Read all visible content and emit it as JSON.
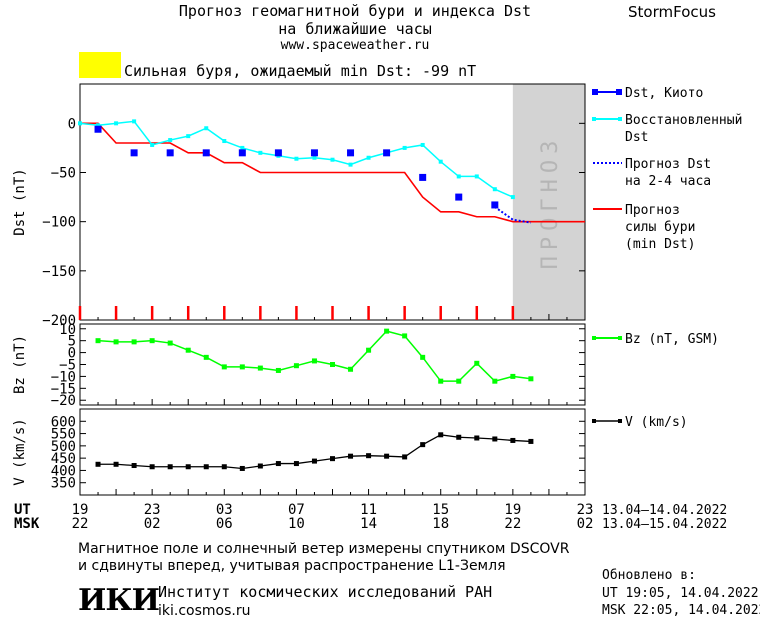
{
  "header": {
    "title_line1": "Прогноз геомагнитной бури и индекса Dst",
    "title_line2": "на ближайшие часы",
    "url": "www.spaceweather.ru",
    "brand": "StormFocus"
  },
  "storm": {
    "text": "Сильная буря, ожидаемый min Dst: -99 nT",
    "color": "#ffff00"
  },
  "colors": {
    "dst_kyoto": "#0000ff",
    "dst_restored": "#00ffff",
    "dst_forecast": "#0000ff",
    "storm_forecast": "#ff0000",
    "bz": "#00ff00",
    "v": "#000000",
    "forecast_band": "#d3d3d3"
  },
  "chart_data": [
    {
      "type": "line",
      "panel": "dst",
      "ylabel": "Dst (nT)",
      "ylim": [
        -200,
        40
      ],
      "yticks": [
        0,
        -50,
        -100,
        -150,
        -200
      ],
      "xlim": [
        0,
        28
      ],
      "forecast_label": "ПРОГНОЗ",
      "forecast_region": [
        24,
        28
      ],
      "series": [
        {
          "name": "Dst, Киото",
          "style": "squares",
          "x": [
            1,
            3,
            5,
            7,
            9,
            11,
            13,
            15,
            17,
            19,
            21,
            23
          ],
          "y": [
            -6,
            -30,
            -30,
            -30,
            -30,
            -30,
            -30,
            -30,
            -30,
            -55,
            -75,
            -83
          ]
        },
        {
          "name": "Восстановленный Dst",
          "style": "line-markers",
          "x": [
            0,
            1,
            2,
            3,
            4,
            5,
            6,
            7,
            8,
            9,
            10,
            11,
            12,
            13,
            14,
            15,
            16,
            17,
            18,
            19,
            20,
            21,
            22,
            23,
            24
          ],
          "y": [
            0,
            -2,
            0,
            2,
            -22,
            -17,
            -13,
            -5,
            -18,
            -25,
            -30,
            -33,
            -36,
            -35,
            -37,
            -42,
            -35,
            -30,
            -25,
            -22,
            -39,
            -54,
            -54,
            -67,
            -75
          ]
        },
        {
          "name": "Прогноз Dst на 2-4 часа",
          "style": "dotted",
          "x": [
            23,
            24,
            25
          ],
          "y": [
            -85,
            -98,
            -101
          ]
        },
        {
          "name": "Прогноз силы бури (min Dst)",
          "style": "line",
          "x": [
            0,
            1,
            2,
            3,
            4,
            5,
            6,
            7,
            8,
            9,
            10,
            11,
            12,
            13,
            14,
            15,
            16,
            17,
            18,
            19,
            20,
            21,
            22,
            23,
            24,
            28
          ],
          "y": [
            0,
            0,
            -20,
            -20,
            -20,
            -20,
            -30,
            -30,
            -40,
            -40,
            -50,
            -50,
            -50,
            -50,
            -50,
            -50,
            -50,
            -50,
            -50,
            -75,
            -90,
            -90,
            -95,
            -95,
            -100,
            -100
          ]
        }
      ]
    },
    {
      "type": "line",
      "panel": "bz",
      "ylabel": "Bz (nT)",
      "ylim": [
        -22,
        12
      ],
      "yticks": [
        10,
        5,
        0,
        -5,
        -10,
        -15,
        -20
      ],
      "ytick_labels": [
        "10",
        "5",
        "0",
        "−5",
        "−10",
        "−15",
        "−20"
      ],
      "xlim": [
        0,
        28
      ],
      "series": [
        {
          "name": "Bz (nT, GSM)",
          "x": [
            1,
            2,
            3,
            4,
            5,
            6,
            7,
            8,
            9,
            10,
            11,
            12,
            13,
            14,
            15,
            16,
            17,
            18,
            19,
            20,
            21,
            22,
            23,
            24,
            25
          ],
          "y": [
            5,
            4.5,
            4.5,
            5,
            4,
            1,
            -2,
            -6,
            -6,
            -6.5,
            -7.5,
            -5.5,
            -3.5,
            -5,
            -7,
            1,
            9,
            7,
            -2,
            -12,
            -12,
            -4.5,
            -12,
            -10,
            -11
          ]
        }
      ]
    },
    {
      "type": "line",
      "panel": "v",
      "ylabel": "V (km/s)",
      "ylim": [
        300,
        650
      ],
      "yticks": [
        600,
        550,
        500,
        450,
        400,
        350
      ],
      "xlim": [
        0,
        28
      ],
      "series": [
        {
          "name": "V (km/s)",
          "x": [
            1,
            2,
            3,
            4,
            5,
            6,
            7,
            8,
            9,
            10,
            11,
            12,
            13,
            14,
            15,
            16,
            17,
            18,
            19,
            20,
            21,
            22,
            23,
            24,
            25
          ],
          "y": [
            425,
            425,
            420,
            415,
            415,
            415,
            415,
            415,
            408,
            418,
            428,
            428,
            438,
            448,
            458,
            460,
            458,
            455,
            505,
            545,
            535,
            532,
            528,
            522,
            518
          ]
        }
      ]
    }
  ],
  "axis": {
    "ut_label": "UT",
    "msk_label": "MSK",
    "ut_ticks": [
      "19",
      "23",
      "03",
      "07",
      "11",
      "15",
      "19",
      "23"
    ],
    "msk_ticks": [
      "22",
      "02",
      "06",
      "10",
      "14",
      "18",
      "22",
      "02"
    ],
    "ut_range": "13.04–14.04.2022",
    "msk_range": "13.04–15.04.2022"
  },
  "footer": {
    "line1": "Магнитное поле и солнечный ветер измерены спутником DSCOVR",
    "line2": "и сдвинуты вперед, учитывая распространение L1-Земля",
    "logo": "ИКИ",
    "org": "Институт космических исследований РАН",
    "org_url": "iki.cosmos.ru",
    "updated_label": "Обновлено в:",
    "updated_ut": "UT  19:05, 14.04.2022",
    "updated_msk": "MSK 22:05, 14.04.2022"
  }
}
